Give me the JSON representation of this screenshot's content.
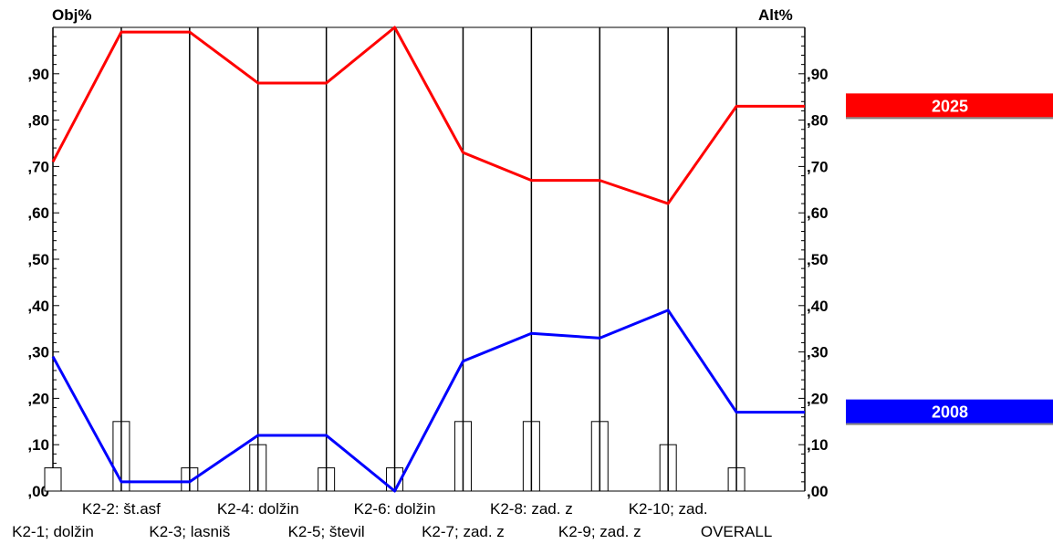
{
  "chart_data": {
    "type": "line",
    "ylabel_left": "Obj%",
    "ylabel_right": "Alt%",
    "ylim": [
      0,
      1.0
    ],
    "yticks": [
      ",00",
      ",10",
      ",20",
      ",30",
      ",40",
      ",50",
      ",60",
      ",70",
      ",80",
      ",90"
    ],
    "categories": [
      "K2-1; dolžin",
      "K2-2: št.asf",
      "K2-3; lasniš",
      "K2-4: dolžin",
      "K2-5; števil",
      "K2-6: dolžin",
      "K2-7; zad. z",
      "K2-8: zad. z",
      "K2-9; zad. z",
      "K2-10; zad.",
      "OVERALL",
      ""
    ],
    "weights": [
      0.05,
      0.15,
      0.05,
      0.1,
      0.05,
      0.05,
      0.15,
      0.15,
      0.15,
      0.1,
      0.05
    ],
    "series": [
      {
        "name": "2025",
        "color": "#ff0000",
        "values": [
          0.71,
          0.99,
          0.99,
          0.88,
          0.88,
          1.0,
          0.73,
          0.67,
          0.67,
          0.62,
          0.83,
          0.83
        ]
      },
      {
        "name": "2008",
        "color": "#0000ff",
        "values": [
          0.29,
          0.02,
          0.02,
          0.12,
          0.12,
          0.0,
          0.28,
          0.34,
          0.33,
          0.39,
          0.17,
          0.17
        ]
      }
    ],
    "legend_position": "right",
    "grid": false
  }
}
